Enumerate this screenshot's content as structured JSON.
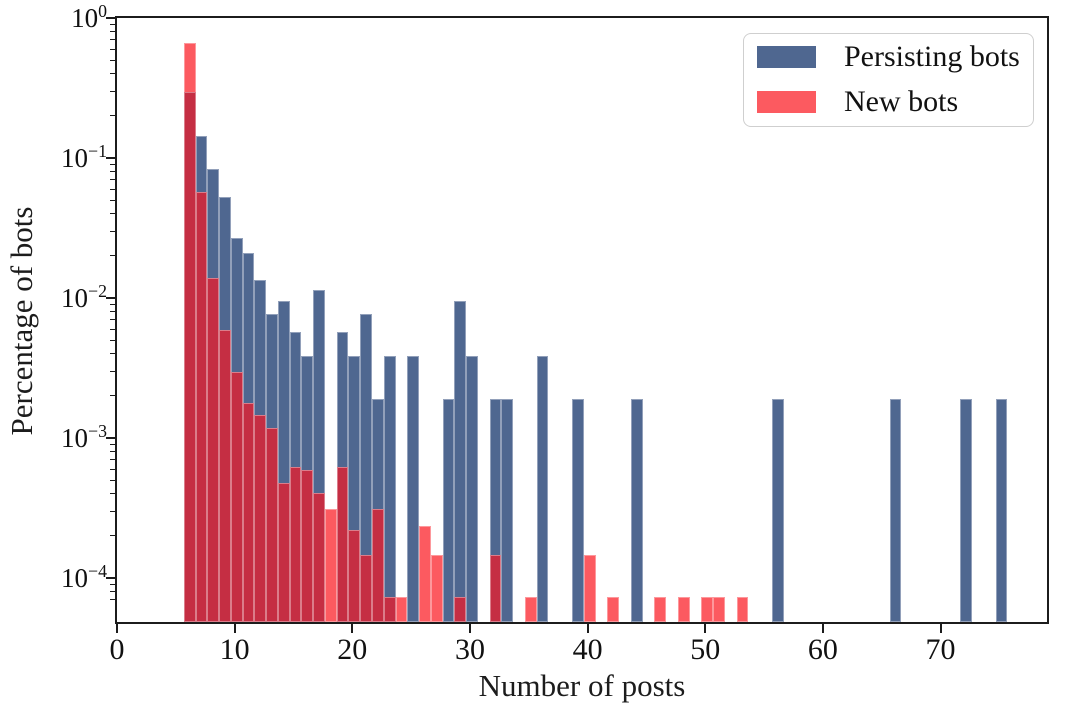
{
  "figure": {
    "xlabel": "Number of posts",
    "ylabel": "Percentage of bots",
    "background": "#ffffff",
    "axis_color": "#1c1c1c"
  },
  "legend": {
    "position": "upper right",
    "items": [
      {
        "label": "Persisting bots",
        "color": "#4F6790"
      },
      {
        "label": "New bots",
        "color": "#FC5A60"
      }
    ]
  },
  "chart_data": {
    "type": "bar",
    "subtype": "overlaid-histogram",
    "title": "",
    "xlabel": "Number of posts",
    "ylabel": "Percentage of bots",
    "grid": false,
    "legend_position": "upper right",
    "x_axis": {
      "scale": "linear",
      "ticks": [
        0,
        10,
        20,
        30,
        40,
        50,
        60,
        70
      ],
      "tick_labels": [
        "0",
        "10",
        "20",
        "30",
        "40",
        "50",
        "60",
        "70"
      ],
      "range": [
        -4.65,
        74.4
      ],
      "bin_width": 1
    },
    "y_axis": {
      "scale": "log",
      "tick_base": "10",
      "tick_exponents": [
        "0",
        "−1",
        "−2",
        "−3",
        "−4"
      ],
      "tick_values": [
        1,
        0.1,
        0.01,
        0.001,
        0.0001
      ],
      "range": [
        6.6e-05,
        1.35
      ]
    },
    "series": [
      {
        "name": "Persisting bots",
        "color": "#4F6790",
        "bins": [
          [
            1,
            0.4
          ],
          [
            2,
            0.196
          ],
          [
            3,
            0.113
          ],
          [
            4,
            0.072
          ],
          [
            5,
            0.0364
          ],
          [
            6,
            0.0286
          ],
          [
            7,
            0.0182
          ],
          [
            8,
            0.0104
          ],
          [
            9,
            0.013
          ],
          [
            10,
            0.0078
          ],
          [
            11,
            0.0052
          ],
          [
            12,
            0.0156
          ],
          [
            14,
            0.0078
          ],
          [
            15,
            0.0052
          ],
          [
            16,
            0.0104
          ],
          [
            17,
            0.0026
          ],
          [
            18,
            0.0052
          ],
          [
            20,
            0.0052
          ],
          [
            23,
            0.0026
          ],
          [
            24,
            0.013
          ],
          [
            25,
            0.0052
          ],
          [
            27,
            0.0026
          ],
          [
            28,
            0.0026
          ],
          [
            31,
            0.0052
          ],
          [
            34,
            0.0026
          ],
          [
            39,
            0.0026
          ],
          [
            51,
            0.0026
          ],
          [
            61,
            0.0026
          ],
          [
            67,
            0.0026
          ],
          [
            70,
            0.0026
          ]
        ]
      },
      {
        "name": "New bots",
        "color": "#FC5A60",
        "overlap_color": "#C52E43",
        "bins": [
          [
            1,
            0.9
          ],
          [
            2,
            0.078
          ],
          [
            3,
            0.019
          ],
          [
            4,
            0.008
          ],
          [
            5,
            0.004
          ],
          [
            6,
            0.0024
          ],
          [
            7,
            0.002
          ],
          [
            8,
            0.0016
          ],
          [
            9,
            0.00065
          ],
          [
            10,
            0.00085
          ],
          [
            11,
            0.0008
          ],
          [
            12,
            0.00055
          ],
          [
            13,
            0.00042
          ],
          [
            14,
            0.00085
          ],
          [
            15,
            0.0003
          ],
          [
            16,
            0.0002
          ],
          [
            17,
            0.00042
          ],
          [
            18,
            0.0001
          ],
          [
            19,
            0.0001
          ],
          [
            21,
            0.00032
          ],
          [
            22,
            0.0002
          ],
          [
            24,
            0.0001
          ],
          [
            27,
            0.0002
          ],
          [
            30,
            0.0001
          ],
          [
            35,
            0.0002
          ],
          [
            37,
            0.0001
          ],
          [
            41,
            0.0001
          ],
          [
            43,
            0.0001
          ],
          [
            45,
            0.0001
          ],
          [
            46,
            0.0001
          ],
          [
            48,
            0.0001
          ]
        ]
      }
    ]
  }
}
